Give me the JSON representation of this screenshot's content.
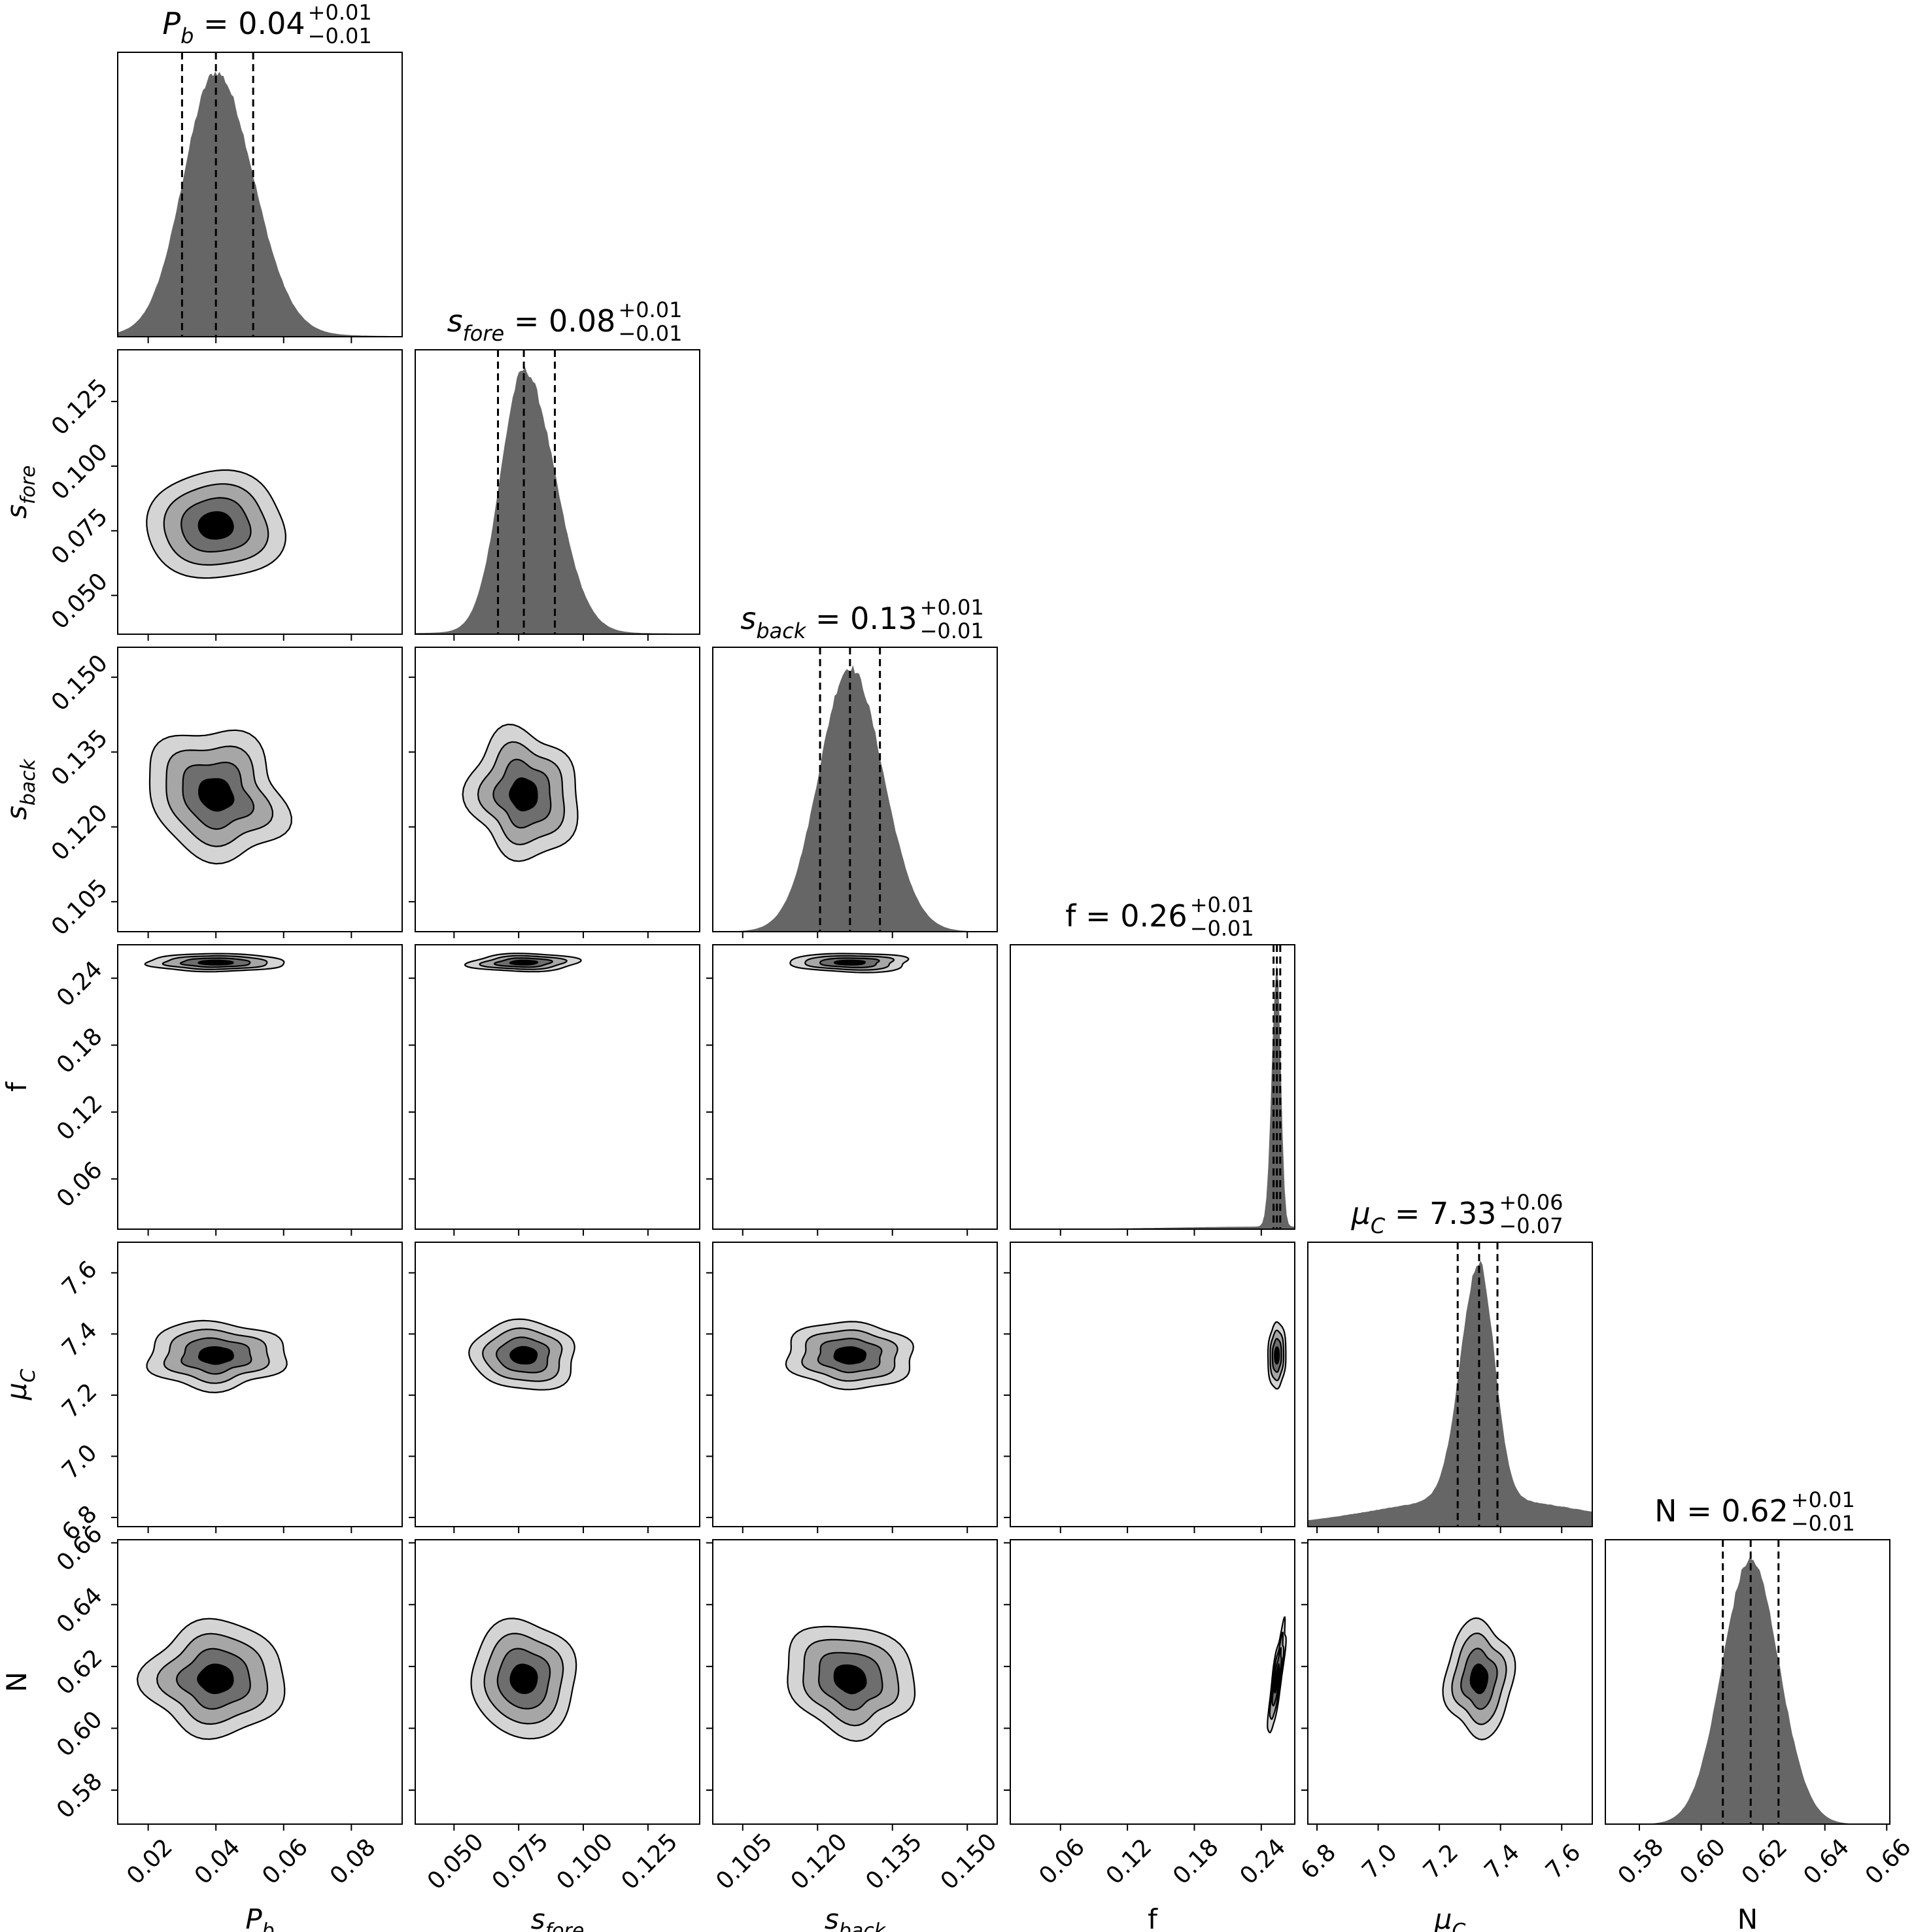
{
  "chart_data": {
    "type": "corner",
    "parameters": [
      {
        "name": "P_b",
        "label_base": "P",
        "label_sub": "b",
        "label_italic": true,
        "median": "0.04",
        "err_plus": "+0.01",
        "err_minus": "−0.01",
        "ticks": [
          0.02,
          0.04,
          0.06,
          0.08
        ],
        "tick_labels": [
          "0.02",
          "0.04",
          "0.06",
          "0.08"
        ],
        "range": [
          0.011,
          0.095
        ],
        "center": 0.04,
        "sigma_lo": 0.0095,
        "sigma_hi": 0.011,
        "q16": 0.03,
        "q50": 0.04,
        "q84": 0.051,
        "tail": 0.012
      },
      {
        "name": "s_fore",
        "label_base": "s",
        "label_sub": "fore",
        "label_italic": true,
        "median": "0.08",
        "err_plus": "+0.01",
        "err_minus": "−0.01",
        "ticks": [
          0.05,
          0.075,
          0.1,
          0.125
        ],
        "tick_labels": [
          "0.050",
          "0.075",
          "0.100",
          "0.125"
        ],
        "range": [
          0.035,
          0.145
        ],
        "center": 0.077,
        "sigma_lo": 0.009,
        "sigma_hi": 0.012,
        "q16": 0.067,
        "q50": 0.077,
        "q84": 0.089,
        "tail": 0.008
      },
      {
        "name": "s_back",
        "label_base": "s",
        "label_sub": "back",
        "label_italic": true,
        "median": "0.13",
        "err_plus": "+0.01",
        "err_minus": "−0.01",
        "ticks": [
          0.105,
          0.12,
          0.135,
          0.15
        ],
        "tick_labels": [
          "0.105",
          "0.120",
          "0.135",
          "0.150"
        ],
        "range": [
          0.099,
          0.156
        ],
        "center": 0.1265,
        "sigma_lo": 0.0062,
        "sigma_hi": 0.0066,
        "q16": 0.1205,
        "q50": 0.1265,
        "q84": 0.1325,
        "tail": 0.002
      },
      {
        "name": "f",
        "label_base": "f",
        "label_sub": "",
        "label_italic": false,
        "median": "0.26",
        "err_plus": "+0.01",
        "err_minus": "−0.01",
        "ticks": [
          0.06,
          0.12,
          0.18,
          0.24
        ],
        "tick_labels": [
          "0.06",
          "0.12",
          "0.18",
          "0.24"
        ],
        "range": [
          0.015,
          0.27
        ],
        "center": 0.254,
        "sigma_lo": 0.0045,
        "sigma_hi": 0.0035,
        "q16": 0.251,
        "q50": 0.254,
        "q84": 0.257,
        "tail": 0.01
      },
      {
        "name": "mu_C",
        "label_base": "μ",
        "label_sub": "C",
        "label_italic": true,
        "median": "7.33",
        "err_plus": "+0.06",
        "err_minus": "−0.07",
        "ticks": [
          6.8,
          7.0,
          7.2,
          7.4,
          7.6
        ],
        "tick_labels": [
          "6.8",
          "7.0",
          "7.2",
          "7.4",
          "7.6"
        ],
        "range": [
          6.77,
          7.7
        ],
        "center": 7.33,
        "sigma_lo": 0.06,
        "sigma_hi": 0.05,
        "q16": 7.26,
        "q50": 7.33,
        "q84": 7.39,
        "tail": 0.12
      },
      {
        "name": "N",
        "label_base": "N",
        "label_sub": "",
        "label_italic": false,
        "median": "0.62",
        "err_plus": "+0.01",
        "err_minus": "−0.01",
        "ticks": [
          0.58,
          0.6,
          0.62,
          0.64,
          0.66
        ],
        "tick_labels": [
          "0.58",
          "0.60",
          "0.62",
          "0.64",
          "0.66"
        ],
        "range": [
          0.569,
          0.661
        ],
        "center": 0.616,
        "sigma_lo": 0.0092,
        "sigma_hi": 0.0092,
        "q16": 0.607,
        "q50": 0.616,
        "q84": 0.625,
        "tail": 0.0
      }
    ],
    "correlations": {
      "f|N": 0.85,
      "P_b|s_back": -0.15,
      "s_back|N": -0.2
    },
    "contour_fill_colors": [
      "#d4d4d4",
      "#a6a6a6",
      "#6e6e6e",
      "#000000"
    ],
    "histogram_color": "#666666",
    "quantile_line_style": "dashed",
    "grid": false
  }
}
